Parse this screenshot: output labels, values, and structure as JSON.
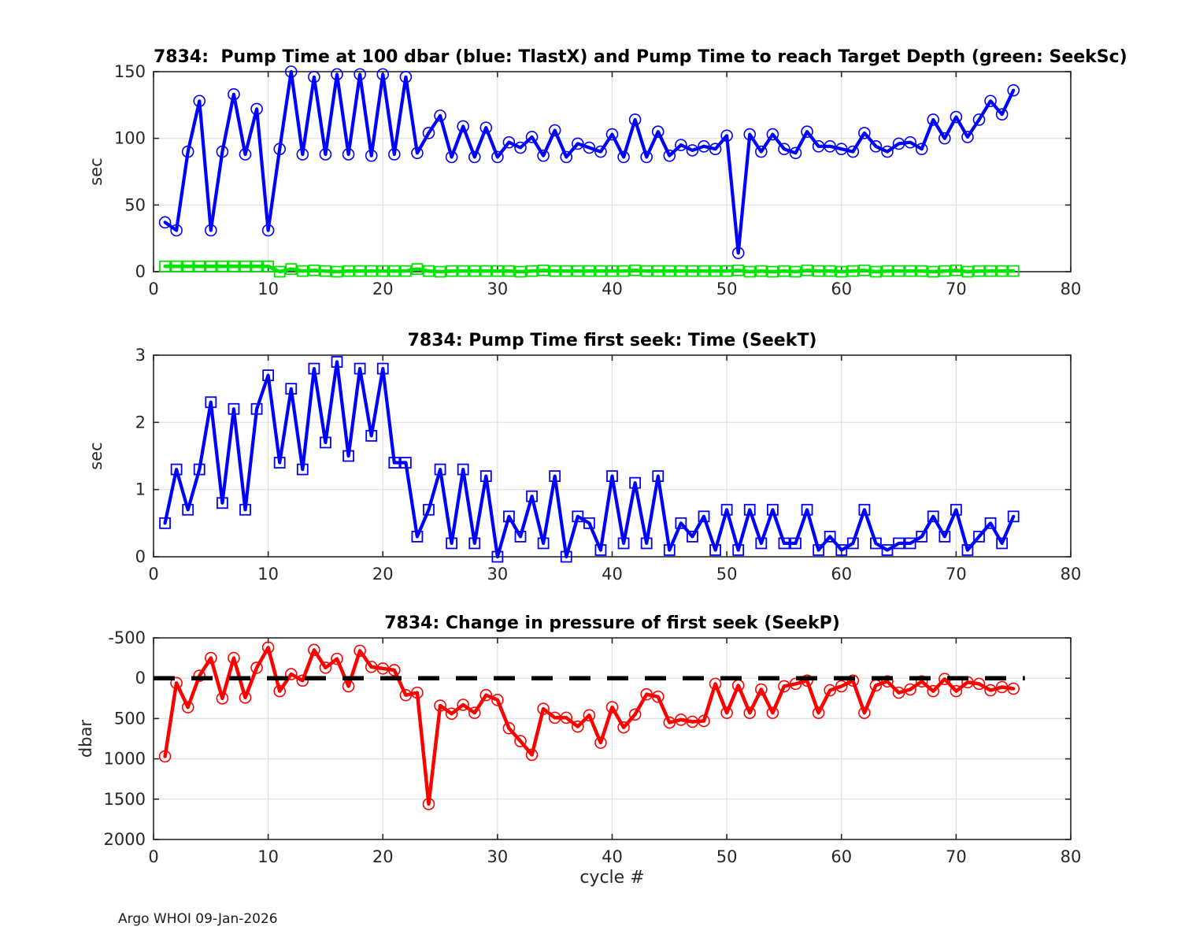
{
  "page": {
    "footer": "Argo WHOI 09-Jan-2026"
  },
  "chart_data": [
    {
      "type": "line",
      "title": "7834:  Pump Time at 100 dbar (blue: TlastX) and Pump Time to reach Target Depth (green: SeekSc)",
      "ylabel": "sec",
      "xlabel": "",
      "xlim": [
        0,
        80
      ],
      "ylim": [
        0,
        150
      ],
      "xticks": [
        0,
        10,
        20,
        30,
        40,
        50,
        60,
        70,
        80
      ],
      "yticks": [
        0,
        50,
        100,
        150
      ],
      "grid": true,
      "x_start_cycle": 1,
      "series": [
        {
          "name": "TlastX",
          "color": "#0000ff",
          "marker": "circle",
          "line_width": 4.2,
          "values": [
            37,
            31,
            90,
            128,
            31,
            90,
            133,
            88,
            122,
            31,
            92,
            150,
            88,
            146,
            88,
            148,
            88,
            148,
            87,
            148,
            88,
            146,
            89,
            104,
            117,
            86,
            109,
            86,
            108,
            86,
            97,
            93,
            101,
            87,
            106,
            86,
            96,
            93,
            90,
            103,
            86,
            114,
            86,
            105,
            87,
            95,
            91,
            94,
            92,
            102,
            14,
            103,
            90,
            103,
            92,
            89,
            105,
            94,
            94,
            92,
            90,
            104,
            94,
            90,
            96,
            97,
            92,
            114,
            100,
            116,
            101,
            114,
            128,
            118,
            136
          ]
        },
        {
          "name": "SeekSc",
          "color": "#00e400",
          "marker": "square",
          "line_width": 4.5,
          "values": [
            4,
            4,
            4,
            4,
            4,
            4,
            4,
            4,
            4,
            4,
            0,
            2,
            0.5,
            1,
            0.5,
            0,
            0.5,
            0.5,
            0.5,
            0.5,
            0.5,
            0.5,
            2,
            0.5,
            0,
            0.5,
            0.5,
            0.5,
            0.5,
            0.5,
            0.5,
            0,
            0.5,
            1,
            0.5,
            0.5,
            0.5,
            0.5,
            0.5,
            0.5,
            0.5,
            1,
            0.5,
            0.5,
            0.5,
            0.5,
            0.5,
            0.5,
            0.5,
            0.5,
            1,
            0,
            0.5,
            0,
            0.5,
            0,
            1,
            0.5,
            0.5,
            0,
            0.5,
            1,
            0,
            0.5,
            0.5,
            0.5,
            0.5,
            0,
            0.5,
            1,
            0,
            0.5,
            0.5,
            0.5,
            0.5
          ]
        }
      ]
    },
    {
      "type": "line",
      "title": "7834: Pump Time first seek: Time (SeekT)",
      "ylabel": "sec",
      "xlabel": "",
      "xlim": [
        0,
        80
      ],
      "ylim": [
        0,
        3
      ],
      "xticks": [
        0,
        10,
        20,
        30,
        40,
        50,
        60,
        70,
        80
      ],
      "yticks": [
        0,
        1,
        2,
        3
      ],
      "grid": true,
      "x_start_cycle": 1,
      "series": [
        {
          "name": "SeekT",
          "color": "#0000ff",
          "marker": "square",
          "line_width": 4.2,
          "values": [
            0.5,
            1.3,
            0.7,
            1.3,
            2.3,
            0.8,
            2.2,
            0.7,
            2.2,
            2.7,
            1.4,
            2.5,
            1.3,
            2.8,
            1.7,
            2.9,
            1.5,
            2.8,
            1.8,
            2.8,
            1.4,
            1.4,
            0.3,
            0.7,
            1.3,
            0.2,
            1.3,
            0.2,
            1.2,
            0.0,
            0.6,
            0.3,
            0.9,
            0.2,
            1.2,
            0.0,
            0.6,
            0.5,
            0.1,
            1.2,
            0.2,
            1.1,
            0.2,
            1.2,
            0.1,
            0.5,
            0.3,
            0.6,
            0.1,
            0.7,
            0.1,
            0.7,
            0.2,
            0.7,
            0.2,
            0.2,
            0.7,
            0.1,
            0.3,
            0.1,
            0.2,
            0.7,
            0.2,
            0.1,
            0.2,
            0.2,
            0.3,
            0.6,
            0.3,
            0.7,
            0.1,
            0.3,
            0.5,
            0.2,
            0.6
          ]
        }
      ]
    },
    {
      "type": "line",
      "title": "7834: Change in pressure of first seek (SeekP)",
      "ylabel": "dbar",
      "xlabel": "cycle #",
      "xlim": [
        0,
        80
      ],
      "ylim": [
        -500,
        2000
      ],
      "y_reversed": true,
      "xticks": [
        0,
        10,
        20,
        30,
        40,
        50,
        60,
        70,
        80
      ],
      "yticks": [
        -500,
        0,
        500,
        1000,
        1500,
        2000
      ],
      "grid": true,
      "x_start_cycle": 1,
      "zero_line": {
        "y": 0,
        "x1": 0,
        "x2": 76,
        "color": "#000000",
        "dashed": true
      },
      "series": [
        {
          "name": "SeekP",
          "color": "#ff0000",
          "marker": "circle",
          "line_width": 4.5,
          "values": [
            970,
            60,
            360,
            -30,
            -250,
            250,
            -250,
            240,
            -130,
            -380,
            160,
            -50,
            30,
            -350,
            -130,
            -240,
            100,
            -340,
            -140,
            -120,
            -100,
            210,
            180,
            1560,
            340,
            440,
            330,
            430,
            210,
            270,
            620,
            780,
            950,
            380,
            490,
            490,
            600,
            460,
            800,
            360,
            610,
            450,
            200,
            230,
            550,
            515,
            540,
            530,
            70,
            430,
            90,
            430,
            140,
            430,
            100,
            70,
            30,
            430,
            150,
            100,
            30,
            430,
            90,
            40,
            180,
            140,
            40,
            160,
            10,
            160,
            50,
            70,
            150,
            110,
            130
          ]
        }
      ]
    }
  ]
}
